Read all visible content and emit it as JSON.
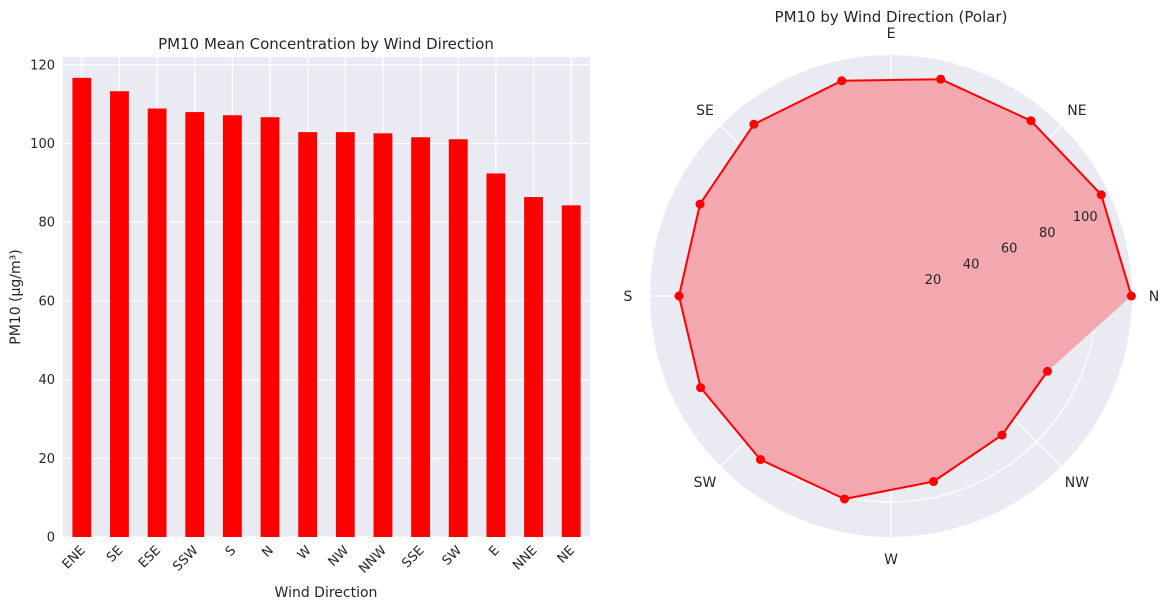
{
  "chart_data": [
    {
      "type": "bar",
      "title": "PM10 Mean Concentration by Wind Direction",
      "xlabel": "Wind Direction",
      "ylabel": "PM10 (µg/m³)",
      "ylim": [
        0,
        122
      ],
      "yticks": [
        0,
        20,
        40,
        60,
        80,
        100,
        120
      ],
      "grid": true,
      "categories": [
        "ENE",
        "SE",
        "ESE",
        "SSW",
        "S",
        "N",
        "W",
        "NW",
        "NNW",
        "SSE",
        "SW",
        "E",
        "NNE",
        "NE"
      ],
      "values": [
        116.7,
        113.3,
        108.9,
        108.0,
        107.2,
        106.7,
        102.9,
        102.9,
        102.6,
        101.6,
        101.1,
        92.4,
        86.4,
        84.3
      ],
      "color": "#ff0000"
    },
    {
      "type": "polar-line",
      "title": "PM10 by Wind Direction (Polar)",
      "angle_labels": [
        "N",
        "NE",
        "E",
        "SE",
        "S",
        "SW",
        "W",
        "NW"
      ],
      "radial_ticks": [
        20,
        40,
        60,
        80,
        100
      ],
      "rmax": 117,
      "order": [
        "ENE",
        "SE",
        "ESE",
        "SSW",
        "S",
        "N",
        "W",
        "NW",
        "NNW",
        "SSE",
        "SW",
        "E",
        "NNE",
        "NE"
      ],
      "points": [
        {
          "angle_deg": 0,
          "value": 116.7
        },
        {
          "angle_deg": 25.7,
          "value": 113.3
        },
        {
          "angle_deg": 51.4,
          "value": 108.9
        },
        {
          "angle_deg": 77.1,
          "value": 108.0
        },
        {
          "angle_deg": 102.9,
          "value": 107.2
        },
        {
          "angle_deg": 128.6,
          "value": 106.7
        },
        {
          "angle_deg": 154.3,
          "value": 102.9
        },
        {
          "angle_deg": 180,
          "value": 102.9
        },
        {
          "angle_deg": 205.7,
          "value": 102.6
        },
        {
          "angle_deg": 231.4,
          "value": 101.6
        },
        {
          "angle_deg": 257.1,
          "value": 101.1
        },
        {
          "angle_deg": 282.9,
          "value": 92.4
        },
        {
          "angle_deg": 308.6,
          "value": 86.4
        },
        {
          "angle_deg": 334.3,
          "value": 84.3
        }
      ],
      "line_color": "#ff0000",
      "fill_color": "#f4a0a6"
    }
  ]
}
